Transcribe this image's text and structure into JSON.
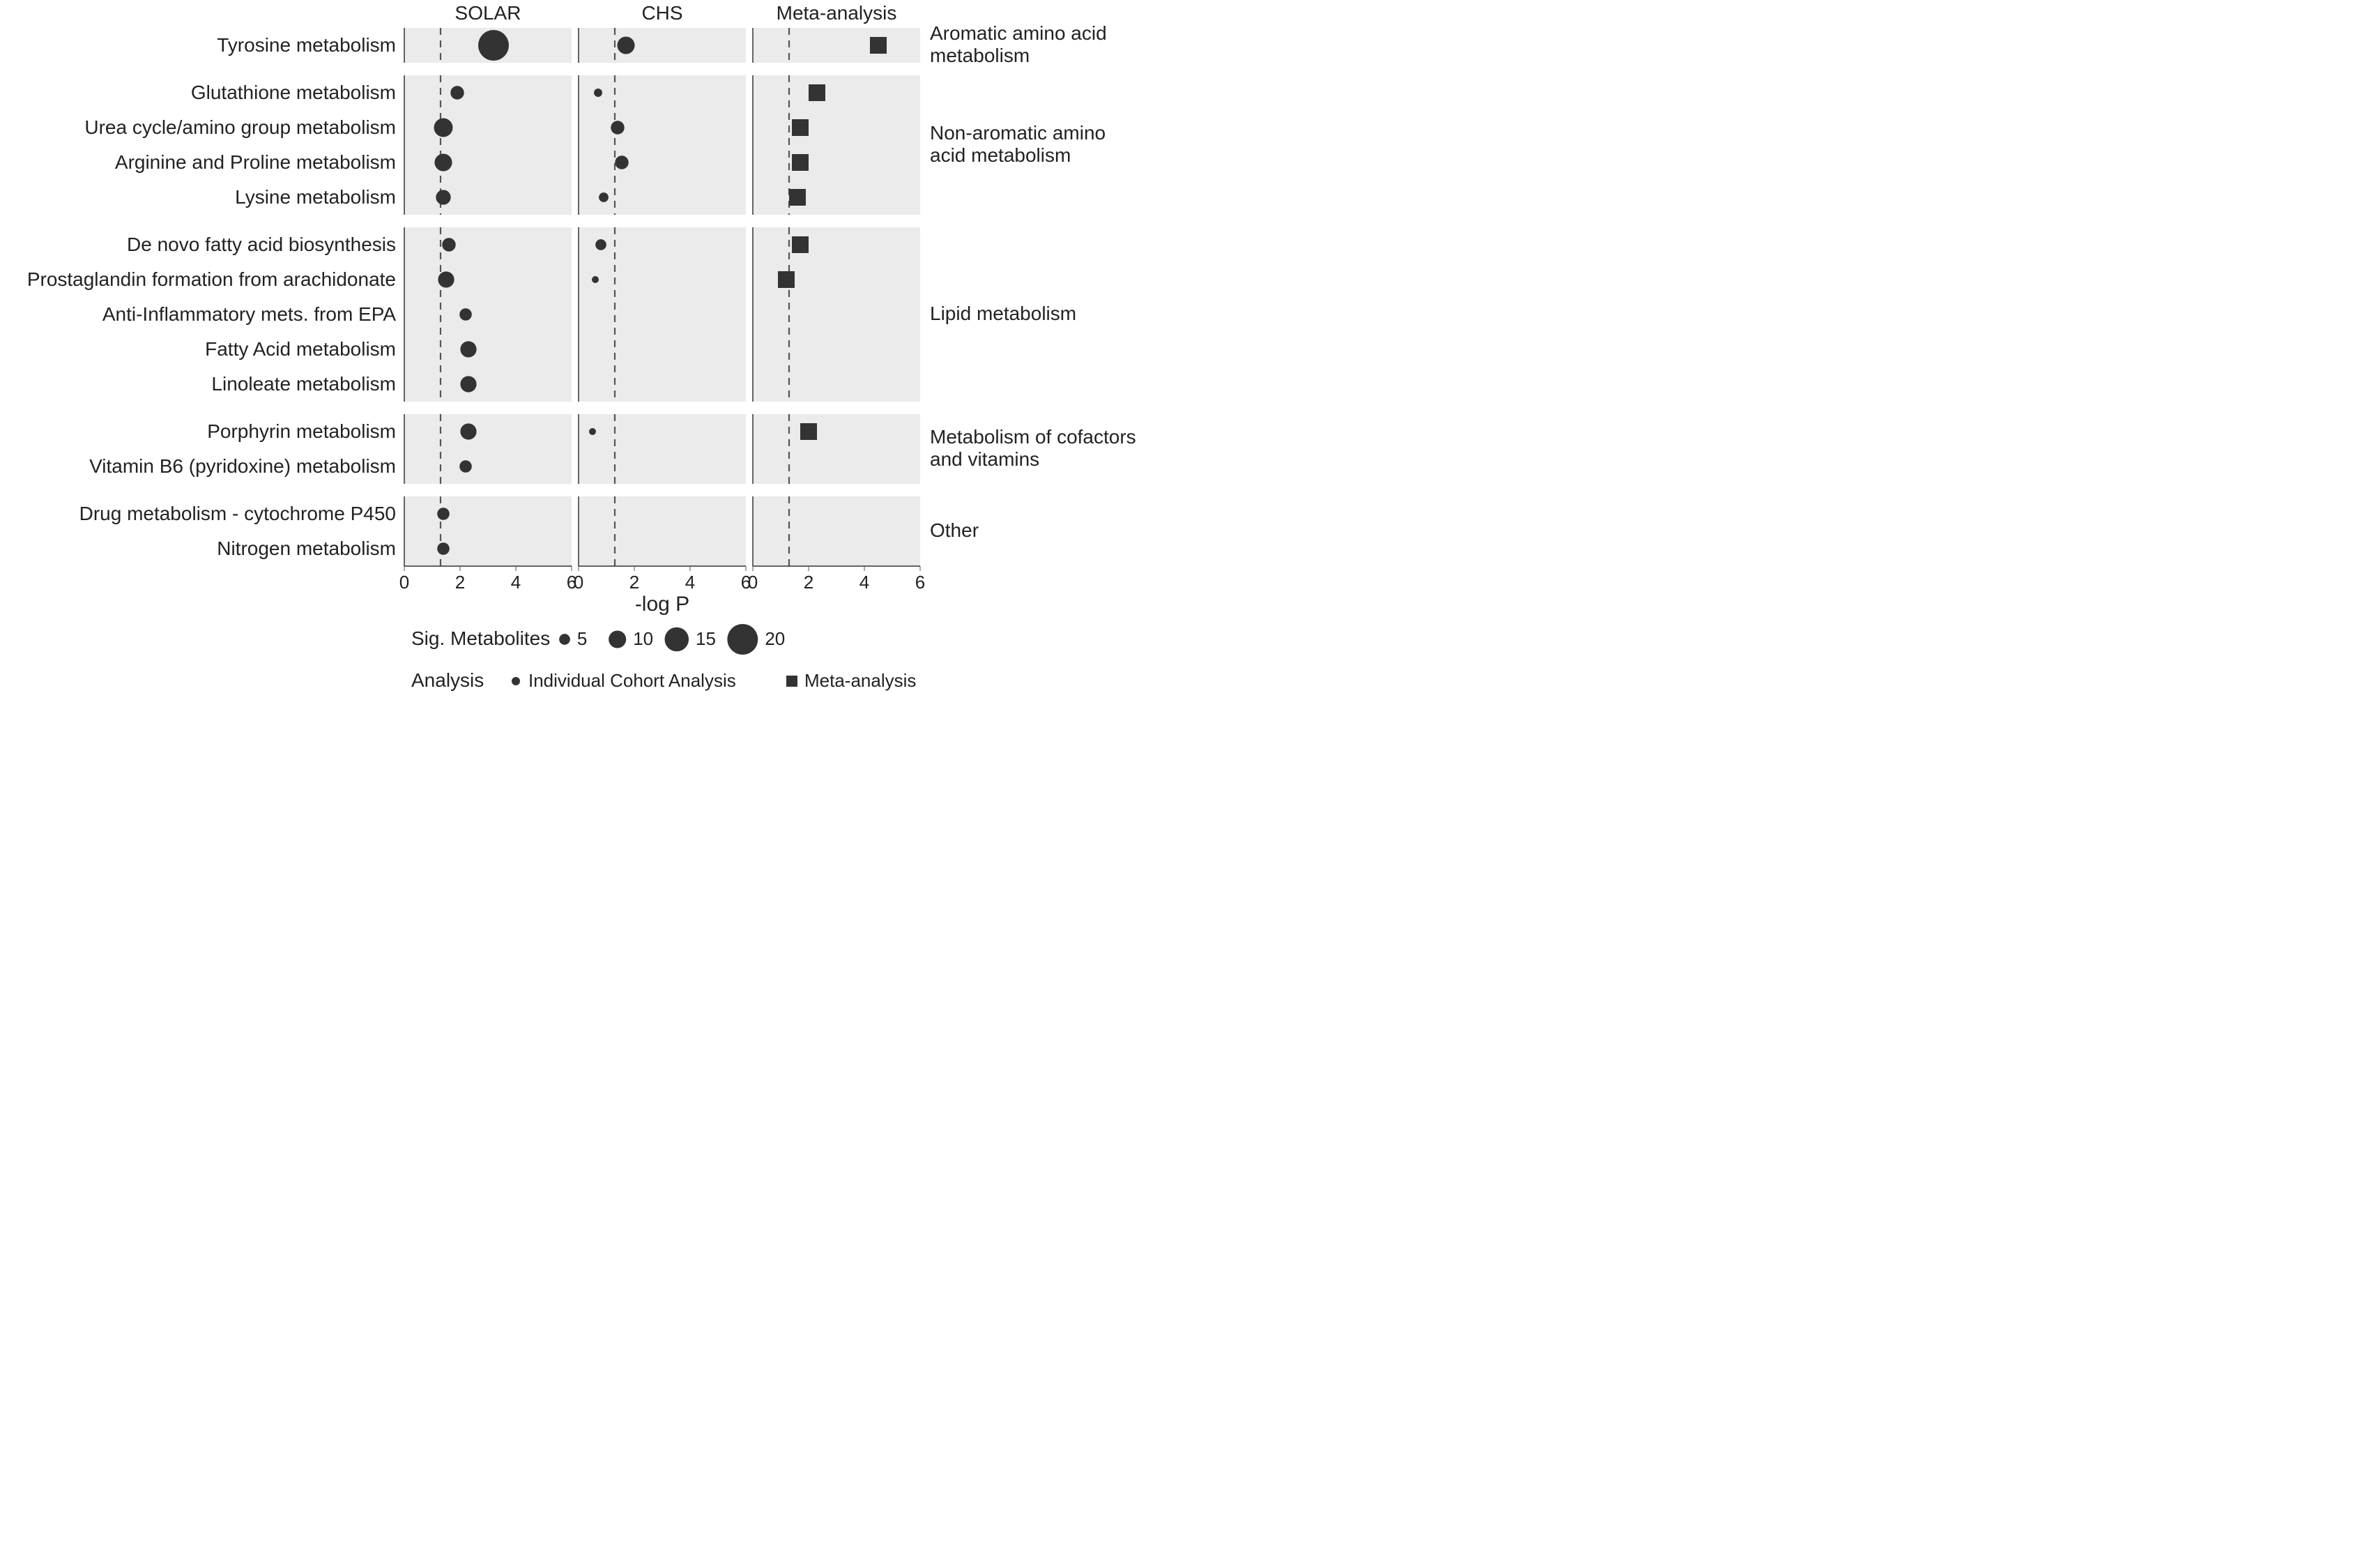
{
  "columns": [
    {
      "key": "solar",
      "label": "SOLAR"
    },
    {
      "key": "chs",
      "label": "CHS"
    },
    {
      "key": "meta",
      "label": "Meta-analysis"
    }
  ],
  "groups": [
    {
      "label": "Aromatic amino acid\nmetabolism",
      "rows": [
        "Tyrosine metabolism"
      ]
    },
    {
      "label": "Non-aromatic amino\nacid metabolism",
      "rows": [
        "Glutathione metabolism",
        "Urea cycle/amino group metabolism",
        "Arginine and Proline metabolism",
        "Lysine metabolism"
      ]
    },
    {
      "label": "Lipid metabolism",
      "rows": [
        "De novo fatty acid biosynthesis",
        "Prostaglandin formation from arachidonate",
        "Anti-Inflammatory mets. from EPA",
        "Fatty Acid metabolism",
        "Linoleate metabolism"
      ]
    },
    {
      "label": "Metabolism of cofactors\nand vitamins",
      "rows": [
        "Porphyrin metabolism",
        "Vitamin B6 (pyridoxine) metabolism"
      ]
    },
    {
      "label": "Other",
      "rows": [
        "Drug metabolism - cytochrome P450",
        "Nitrogen metabolism"
      ]
    }
  ],
  "x": {
    "label": "-log P",
    "min": 0,
    "max": 6,
    "ticks": [
      0,
      2,
      4,
      6
    ],
    "ref": 1.3
  },
  "size_scale": {
    "min_n": 2,
    "max_n": 20,
    "min_r": 5,
    "max_r": 22
  },
  "points": {
    "solar": {
      "Tyrosine metabolism": {
        "x": 3.2,
        "n": 20
      },
      "Glutathione metabolism": {
        "x": 1.9,
        "n": 7
      },
      "Urea cycle/amino group metabolism": {
        "x": 1.4,
        "n": 11
      },
      "Arginine and Proline metabolism": {
        "x": 1.4,
        "n": 10
      },
      "Lysine metabolism": {
        "x": 1.4,
        "n": 8
      },
      "De novo fatty acid biosynthesis": {
        "x": 1.6,
        "n": 7
      },
      "Prostaglandin formation from arachidonate": {
        "x": 1.5,
        "n": 9
      },
      "Anti-Inflammatory mets. from EPA": {
        "x": 2.2,
        "n": 6
      },
      "Fatty Acid metabolism": {
        "x": 2.3,
        "n": 9
      },
      "Linoleate metabolism": {
        "x": 2.3,
        "n": 9
      },
      "Porphyrin metabolism": {
        "x": 2.3,
        "n": 9
      },
      "Vitamin B6 (pyridoxine) metabolism": {
        "x": 2.2,
        "n": 6
      },
      "Drug metabolism - cytochrome P450": {
        "x": 1.4,
        "n": 6
      },
      "Nitrogen metabolism": {
        "x": 1.4,
        "n": 6
      }
    },
    "chs": {
      "Tyrosine metabolism": {
        "x": 1.7,
        "n": 10
      },
      "Glutathione metabolism": {
        "x": 0.7,
        "n": 3
      },
      "Urea cycle/amino group metabolism": {
        "x": 1.4,
        "n": 7
      },
      "Arginine and Proline metabolism": {
        "x": 1.55,
        "n": 7
      },
      "Lysine metabolism": {
        "x": 0.9,
        "n": 4
      },
      "De novo fatty acid biosynthesis": {
        "x": 0.8,
        "n": 5
      },
      "Prostaglandin formation from arachidonate": {
        "x": 0.6,
        "n": 2
      },
      "Porphyrin metabolism": {
        "x": 0.5,
        "n": 2
      }
    },
    "meta": {
      "Tyrosine metabolism": {
        "x": 4.5
      },
      "Glutathione metabolism": {
        "x": 2.3
      },
      "Urea cycle/amino group metabolism": {
        "x": 1.7
      },
      "Arginine and Proline metabolism": {
        "x": 1.7
      },
      "Lysine metabolism": {
        "x": 1.6
      },
      "De novo fatty acid biosynthesis": {
        "x": 1.7
      },
      "Prostaglandin formation from arachidonate": {
        "x": 1.2
      },
      "Porphyrin metabolism": {
        "x": 2.0
      }
    }
  },
  "legends": {
    "size": {
      "title": "Sig. Metabolites",
      "items": [
        {
          "label": "5",
          "n": 5
        },
        {
          "label": "10",
          "n": 10
        },
        {
          "label": "15",
          "n": 15
        },
        {
          "label": "20",
          "n": 20
        }
      ]
    },
    "shape": {
      "title": "Analysis",
      "items": [
        {
          "label": "Individual Cohort Analysis",
          "shape": "circle"
        },
        {
          "label": "Meta-analysis",
          "shape": "square"
        }
      ]
    }
  },
  "colors": {
    "marker": "#333333",
    "panel_bg": "#ebebeb",
    "ref_line": "#555555",
    "text": "#222222",
    "page_bg": "#ffffff"
  },
  "meta_marker_half": 12
}
